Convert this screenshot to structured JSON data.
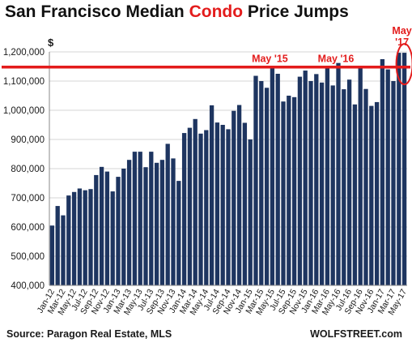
{
  "title": {
    "pre": "San Francisco Median ",
    "highlight": "Condo",
    "post": " Price Jumps"
  },
  "source": "Source: Paragon Real Estate, MLS",
  "brand": "WOLFSTREET.com",
  "colors": {
    "bar": "#1e3560",
    "reference_line": "#e31c1c",
    "annotation": "#e31c1c",
    "grid": "#d6d6d6",
    "title_highlight": "#e31c1c"
  },
  "chart_data": {
    "type": "bar",
    "title": "San Francisco Median Condo Price Jumps",
    "ylabel": "$",
    "xlabel": "",
    "ylim": [
      400000,
      1200000
    ],
    "yticks": [
      400000,
      500000,
      600000,
      700000,
      800000,
      900000,
      1000000,
      1100000,
      1200000
    ],
    "ytick_labels": [
      "400,000",
      "500,000",
      "600,000",
      "700,000",
      "800,000",
      "900,000",
      "1,000,000",
      "1,100,000",
      "1,200,000"
    ],
    "grid": true,
    "categories": [
      "Jan-12",
      "Feb-12",
      "Mar-12",
      "Apr-12",
      "May-12",
      "Jun-12",
      "Jul-12",
      "Aug-12",
      "Sep-12",
      "Oct-12",
      "Nov-12",
      "Dec-12",
      "Jan-13",
      "Feb-13",
      "Mar-13",
      "Apr-13",
      "May-13",
      "Jun-13",
      "Jul-13",
      "Aug-13",
      "Sep-13",
      "Oct-13",
      "Nov-13",
      "Dec-13",
      "Jan-14",
      "Feb-14",
      "Mar-14",
      "Apr-14",
      "May-14",
      "Jun-14",
      "Jul-14",
      "Aug-14",
      "Sep-14",
      "Oct-14",
      "Nov-14",
      "Dec-14",
      "Jan-15",
      "Feb-15",
      "Mar-15",
      "Apr-15",
      "May-15",
      "Jun-15",
      "Jul-15",
      "Aug-15",
      "Sep-15",
      "Oct-15",
      "Nov-15",
      "Dec-15",
      "Jan-16",
      "Feb-16",
      "Mar-16",
      "Apr-16",
      "May-16",
      "Jun-16",
      "Jul-16",
      "Aug-16",
      "Sep-16",
      "Oct-16",
      "Nov-16",
      "Dec-16",
      "Jan-17",
      "Feb-17",
      "Mar-17",
      "Apr-17",
      "May-17"
    ],
    "xtick_labels": [
      "Jan-12",
      "Mar-12",
      "May-12",
      "Jul-12",
      "Sep-12",
      "Nov-12",
      "Jan-13",
      "Mar-13",
      "May-13",
      "Jul-13",
      "Sep-13",
      "Nov-13",
      "Jan-14",
      "Mar-14",
      "May-14",
      "Jul-14",
      "Sep-14",
      "Nov-14",
      "Jan-15",
      "Mar-15",
      "May-15",
      "Jul-15",
      "Sep-15",
      "Nov-15",
      "Jan-16",
      "Mar-16",
      "May-16",
      "Jul-16",
      "Sep-16",
      "Nov-16",
      "Jan-17",
      "Mar-17",
      "May-17"
    ],
    "values": [
      605000,
      672000,
      640000,
      708000,
      720000,
      732000,
      726000,
      730000,
      778000,
      806000,
      790000,
      722000,
      772000,
      800000,
      830000,
      858000,
      858000,
      805000,
      858000,
      820000,
      830000,
      885000,
      835000,
      758000,
      922000,
      940000,
      970000,
      920000,
      932000,
      1017000,
      958000,
      950000,
      935000,
      998000,
      1018000,
      957000,
      900000,
      1118000,
      1100000,
      1077000,
      1148000,
      1125000,
      1030000,
      1050000,
      1045000,
      1115000,
      1136000,
      1100000,
      1124000,
      1095000,
      1148000,
      1085000,
      1162000,
      1072000,
      1105000,
      1020000,
      1148000,
      1073000,
      1015000,
      1028000,
      1175000,
      1140000,
      1100000,
      1197000,
      1197000
    ],
    "reference_line": {
      "value": 1148000
    },
    "annotations": [
      {
        "text": "May '15",
        "category": "May-15"
      },
      {
        "text": "May '16",
        "category": "May-16"
      },
      {
        "text": "May\n'17",
        "category": "May-17",
        "circled": true
      }
    ]
  }
}
